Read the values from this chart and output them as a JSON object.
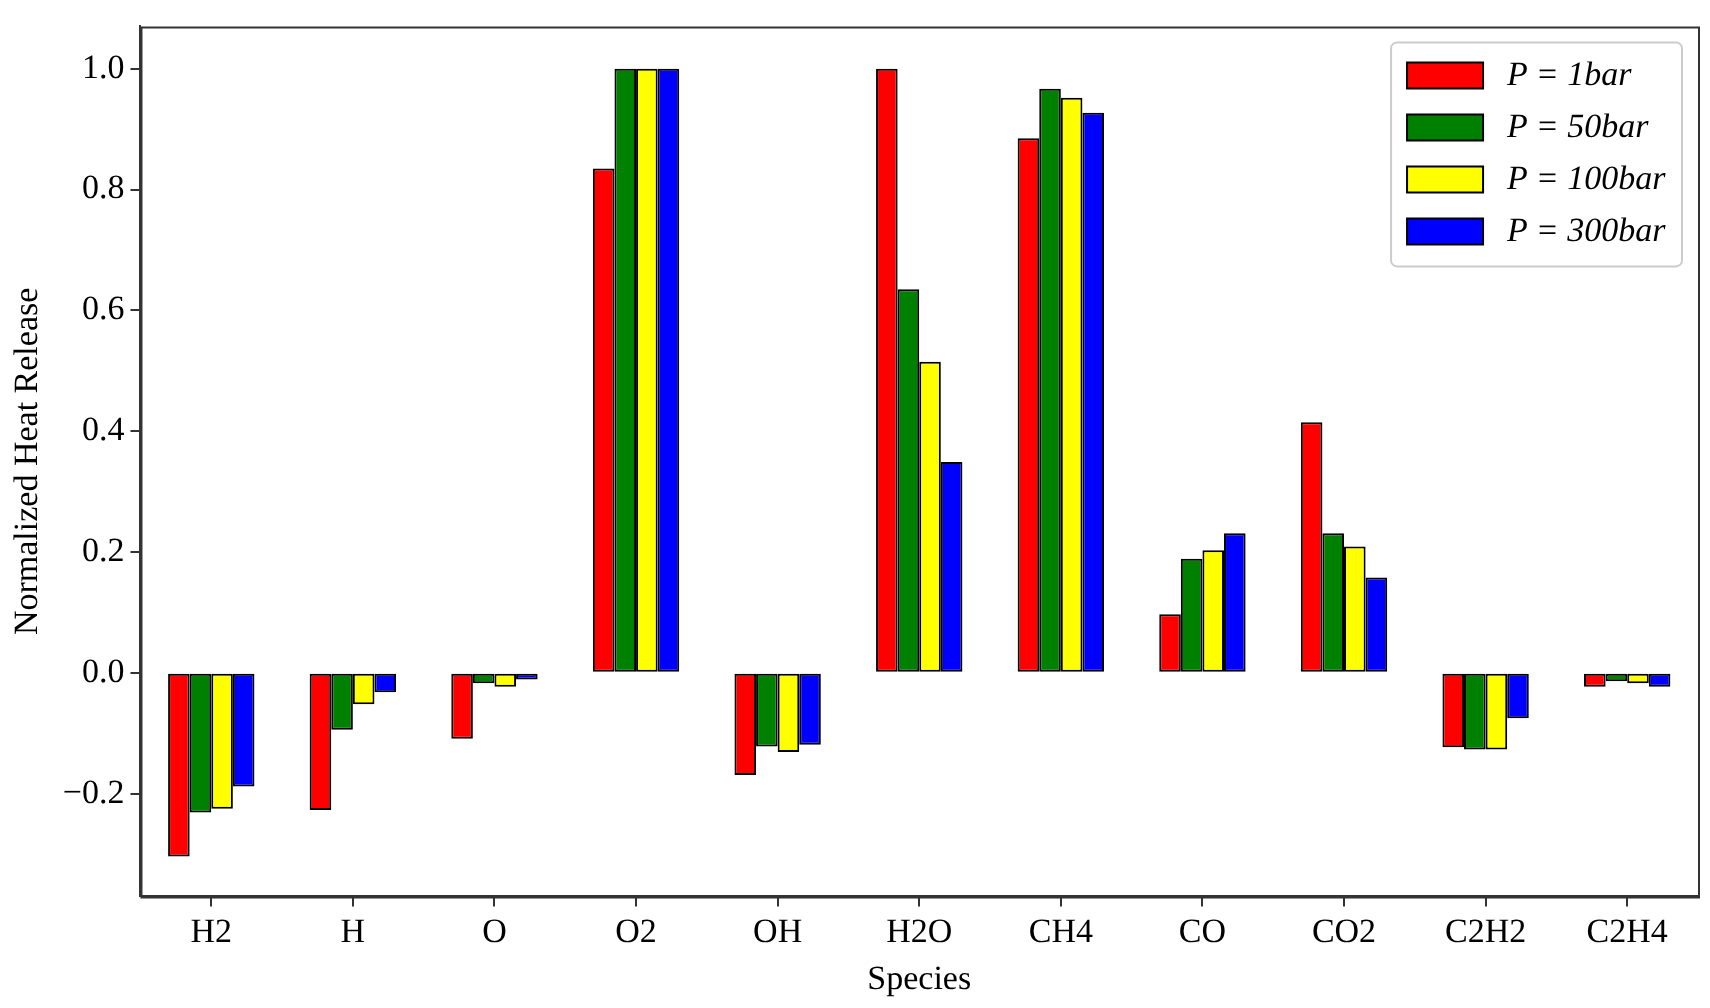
{
  "chart_data": {
    "type": "bar",
    "xlabel": "Species",
    "ylabel": "Normalized Heat Release",
    "categories": [
      "H2",
      "H",
      "O",
      "O2",
      "OH",
      "H2O",
      "CH4",
      "CO",
      "CO2",
      "C2H2",
      "C2H4"
    ],
    "series": [
      {
        "name": "P = 1bar",
        "color": "#ff0000",
        "values": [
          -0.304,
          -0.227,
          -0.109,
          0.835,
          -0.169,
          1.0,
          0.885,
          0.097,
          0.415,
          -0.123,
          -0.023
        ]
      },
      {
        "name": "P = 50bar",
        "color": "#008000",
        "values": [
          -0.231,
          -0.094,
          -0.017,
          1.0,
          -0.122,
          0.635,
          0.967,
          0.189,
          0.231,
          -0.127,
          -0.014
        ]
      },
      {
        "name": "P = 100bar",
        "color": "#ffff00",
        "values": [
          -0.225,
          -0.052,
          -0.023,
          1.0,
          -0.131,
          0.515,
          0.952,
          0.203,
          0.209,
          -0.127,
          -0.017
        ]
      },
      {
        "name": "P = 300bar",
        "color": "#0000ff",
        "values": [
          -0.188,
          -0.032,
          -0.011,
          1.0,
          -0.119,
          0.349,
          0.927,
          0.231,
          0.158,
          -0.075,
          -0.023
        ]
      }
    ],
    "ylim": [
      -0.37,
      1.07
    ],
    "yticks": [
      {
        "value": -0.2,
        "label": "−0.2"
      },
      {
        "value": 0,
        "label": "0.0"
      },
      {
        "value": 0.2,
        "label": "0.2"
      },
      {
        "value": 0.4,
        "label": "0.4"
      },
      {
        "value": 0.6,
        "label": "0.6"
      },
      {
        "value": 0.8,
        "label": "0.8"
      },
      {
        "value": 1,
        "label": "1.0"
      }
    ],
    "grid": false,
    "legend": "top right"
  }
}
